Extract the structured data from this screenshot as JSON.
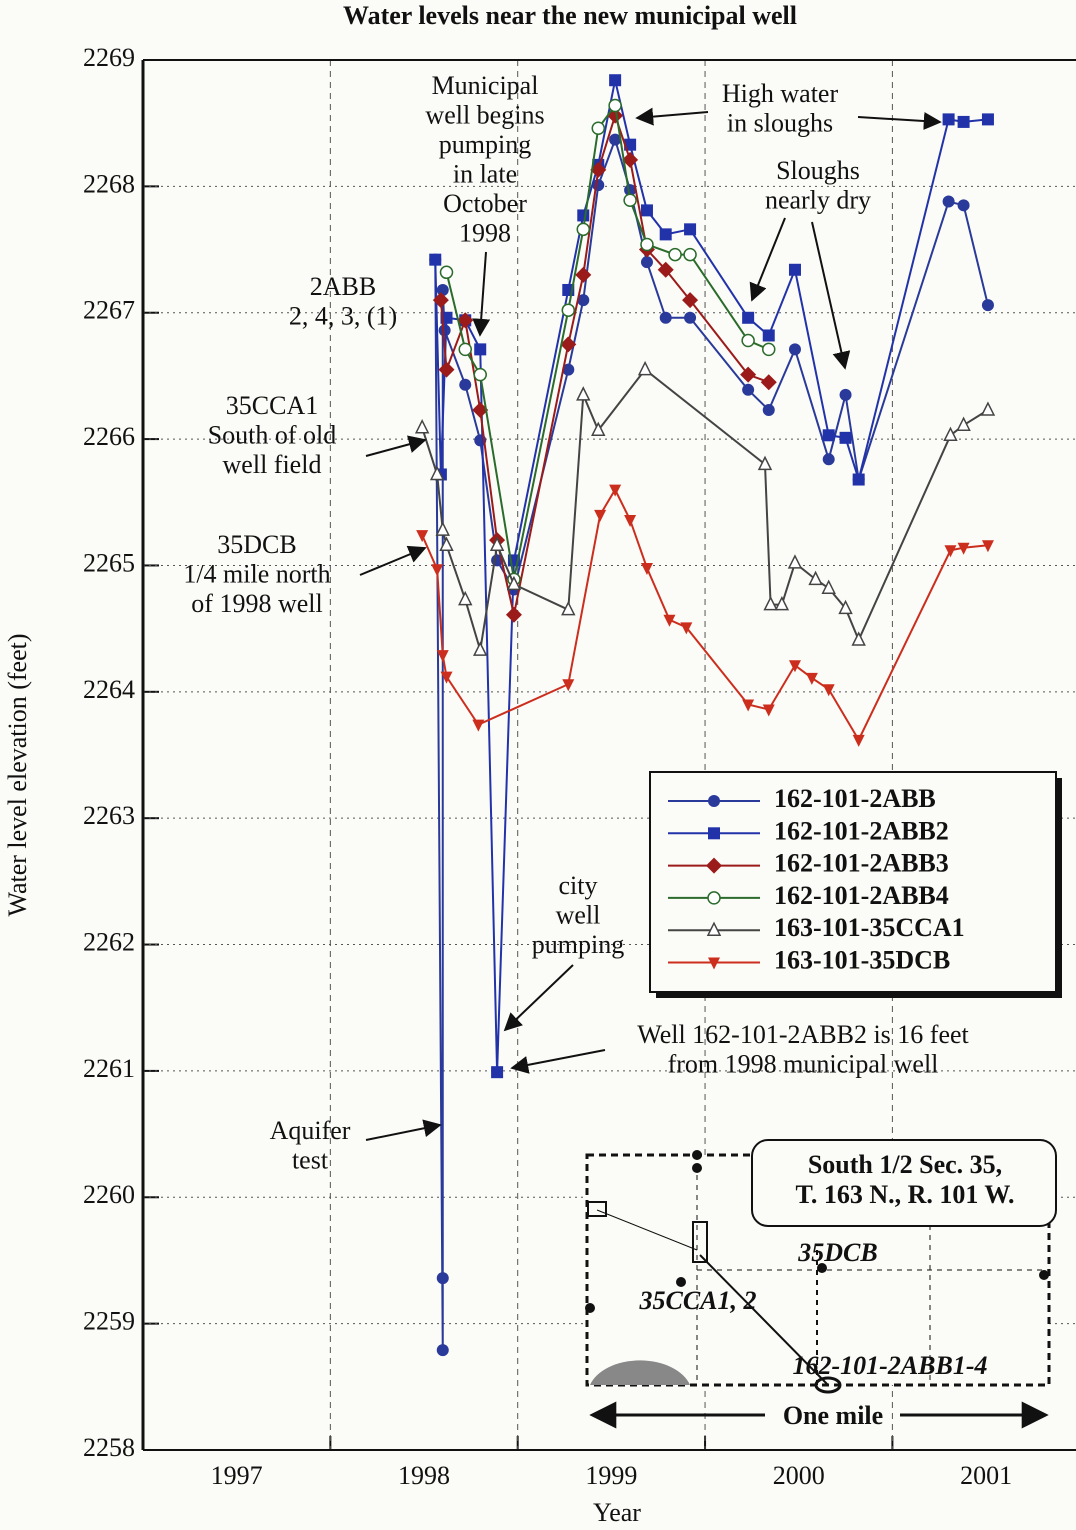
{
  "chart_data": {
    "type": "line",
    "title": "Water levels near the new municipal well",
    "x_label": "Year",
    "y_label": "Water level elevation (feet)",
    "xlim": [
      1997,
      2001.98
    ],
    "xticks": [
      1997,
      1998,
      1999,
      2000,
      2001
    ],
    "ylim": [
      2258,
      2269
    ],
    "yticks": [
      2258,
      2259,
      2260,
      2261,
      2262,
      2263,
      2264,
      2265,
      2266,
      2267,
      2268,
      2269
    ],
    "grid": true,
    "legend": "right",
    "series": [
      {
        "name": "162-101-2ABB",
        "color": "#2a3a9a",
        "marker": "circle",
        "x": [
          1998.56,
          1998.6,
          1998.6,
          1998.6,
          1998.61,
          1998.72,
          1998.8,
          1998.89,
          1998.98,
          1999.27,
          1999.35,
          1999.43,
          1999.52,
          1999.6,
          1999.69,
          1999.79,
          1999.92,
          2000.23,
          2000.34,
          2000.48,
          2000.66,
          2000.75,
          2000.82,
          2001.3,
          2001.38,
          2001.51
        ],
        "values": [
          2267.42,
          2258.79,
          2259.36,
          2267.18,
          2266.86,
          2266.43,
          2265.99,
          2265.04,
          2264.81,
          2266.55,
          2267.1,
          2268.01,
          2268.37,
          2267.97,
          2267.4,
          2266.96,
          2266.96,
          2266.39,
          2266.23,
          2266.71,
          2265.84,
          2266.35,
          2265.68,
          2267.88,
          2267.85,
          2267.06
        ]
      },
      {
        "name": "162-101-2ABB2",
        "color": "#2233aa",
        "marker": "square",
        "x": [
          1998.56,
          1998.59,
          1998.62,
          1998.72,
          1998.8,
          1998.89,
          1998.98,
          1999.27,
          1999.35,
          1999.43,
          1999.52,
          1999.6,
          1999.69,
          1999.79,
          1999.92,
          2000.23,
          2000.34,
          2000.48,
          2000.66,
          2000.75,
          2000.82,
          2001.3,
          2001.38,
          2001.51
        ],
        "values": [
          2267.42,
          2265.72,
          2266.96,
          2266.94,
          2266.71,
          2260.99,
          2265.04,
          2267.18,
          2267.77,
          2268.17,
          2268.84,
          2268.33,
          2267.81,
          2267.62,
          2267.66,
          2266.96,
          2266.82,
          2267.34,
          2266.03,
          2266.01,
          2265.68,
          2268.53,
          2268.51,
          2268.53
        ]
      },
      {
        "name": "162-101-2ABB3",
        "color": "#9b1b1b",
        "marker": "diamond",
        "x": [
          1998.59,
          1998.62,
          1998.72,
          1998.8,
          1998.89,
          1998.98,
          1999.27,
          1999.35,
          1999.43,
          1999.52,
          1999.6,
          1999.69,
          1999.79,
          1999.92,
          2000.23,
          2000.34
        ],
        "values": [
          2267.1,
          2266.55,
          2266.94,
          2266.23,
          2265.2,
          2264.61,
          2266.75,
          2267.3,
          2268.13,
          2268.56,
          2268.21,
          2267.5,
          2267.34,
          2267.1,
          2266.51,
          2266.45
        ]
      },
      {
        "name": "162-101-2ABB4",
        "color": "#2b6b2b",
        "marker": "open-circle",
        "x": [
          1998.62,
          1998.72,
          1998.8,
          1998.98,
          1999.27,
          1999.35,
          1999.43,
          1999.52,
          1999.6,
          1999.69,
          1999.84,
          1999.92,
          2000.23,
          2000.34
        ],
        "values": [
          2267.32,
          2266.71,
          2266.51,
          2264.89,
          2267.02,
          2267.66,
          2268.46,
          2268.64,
          2267.89,
          2267.54,
          2267.46,
          2267.46,
          2266.78,
          2266.71
        ]
      },
      {
        "name": "163-101-35CCA1",
        "color": "#444444",
        "marker": "open-triangle",
        "x": [
          1998.49,
          1998.57,
          1998.6,
          1998.62,
          1998.72,
          1998.8,
          1998.89,
          1998.98,
          1999.27,
          1999.35,
          1999.43,
          1999.68,
          2000.32,
          2000.35,
          2000.41,
          2000.48,
          2000.59,
          2000.66,
          2000.75,
          2000.82,
          2001.31,
          2001.38,
          2001.51
        ],
        "values": [
          2266.09,
          2265.72,
          2265.28,
          2265.16,
          2264.73,
          2264.33,
          2265.16,
          2264.85,
          2264.65,
          2266.35,
          2266.07,
          2266.55,
          2265.8,
          2264.69,
          2264.69,
          2265.02,
          2264.89,
          2264.82,
          2264.66,
          2264.41,
          2266.03,
          2266.11,
          2266.23
        ]
      },
      {
        "name": "163-101-35DCB",
        "color": "#cc2e1e",
        "marker": "triangle-down",
        "x": [
          1998.49,
          1998.57,
          1998.6,
          1998.62,
          1998.79,
          1999.27,
          1999.44,
          1999.52,
          1999.6,
          1999.69,
          1999.81,
          1999.9,
          2000.23,
          2000.34,
          2000.48,
          2000.57,
          2000.66,
          2000.82,
          2001.31,
          2001.38,
          2001.51
        ],
        "values": [
          2265.24,
          2264.97,
          2264.29,
          2264.12,
          2263.74,
          2264.06,
          2265.4,
          2265.6,
          2265.36,
          2264.98,
          2264.57,
          2264.51,
          2263.9,
          2263.86,
          2264.21,
          2264.11,
          2264.02,
          2263.62,
          2265.12,
          2265.14,
          2265.16
        ]
      }
    ],
    "annotations": [
      {
        "lines": [
          "Municipal",
          "well begins",
          "pumping",
          "in late",
          "October",
          "1998"
        ]
      },
      {
        "lines": [
          "High water",
          "in sloughs"
        ]
      },
      {
        "lines": [
          "Sloughs",
          "nearly dry"
        ]
      },
      {
        "lines": [
          "2ABB",
          "2, 4, 3, (1)"
        ]
      },
      {
        "lines": [
          "35CCA1",
          "South of old",
          "well field"
        ]
      },
      {
        "lines": [
          "35DCB",
          "1/4 mile north",
          "of 1998 well"
        ]
      },
      {
        "lines": [
          "city",
          "well",
          "pumping"
        ]
      },
      {
        "lines": [
          "Well 162-101-2ABB2 is 16 feet",
          "from 1998 municipal well"
        ]
      },
      {
        "lines": [
          "Aquifer",
          "test"
        ]
      }
    ],
    "inset": {
      "title_lines": [
        "South 1/2 Sec. 35,",
        "T. 163 N., R. 101 W."
      ],
      "labels": [
        "35DCB",
        "35CCA1, 2",
        "162-101-2ABB1-4"
      ],
      "scale_label": "One mile"
    }
  }
}
